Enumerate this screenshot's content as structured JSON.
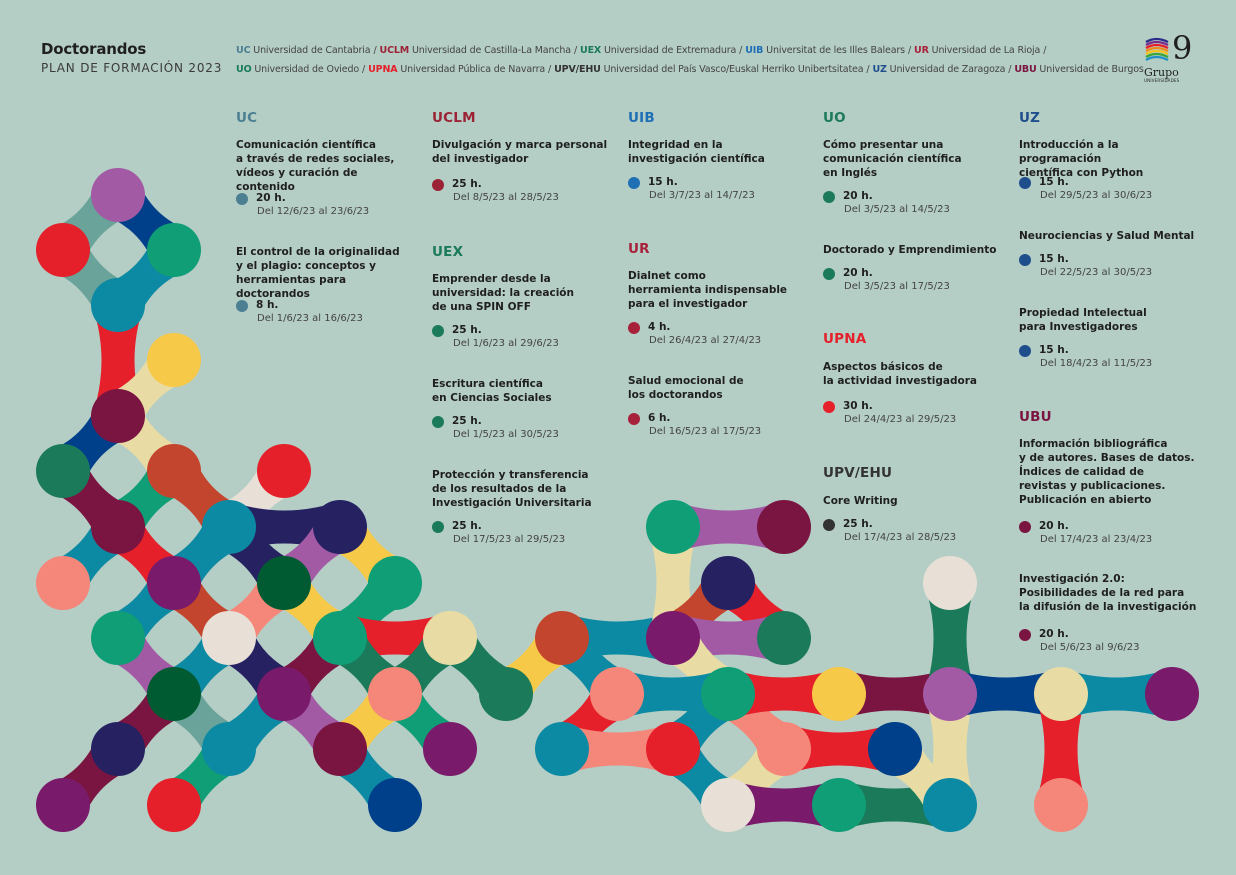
{
  "header": {
    "title": "Doctorandos",
    "subtitle": "PLAN DE FORMACIÓN 2023"
  },
  "universities_line1": [
    {
      "code": "UC",
      "name": "Universidad de Cantabria",
      "color": "#4b7f91"
    },
    {
      "code": "UCLM",
      "name": "Universidad de Castilla-La Mancha",
      "color": "#9b2335"
    },
    {
      "code": "UEX",
      "name": "Universidad de Extremadura",
      "color": "#1a7a5a"
    },
    {
      "code": "UIB",
      "name": "Universitat de les Illes Balears",
      "color": "#1f6fb5"
    },
    {
      "code": "UR",
      "name": "Universidad de La Rioja",
      "color": "#a8213a"
    }
  ],
  "universities_line2": [
    {
      "code": "UO",
      "name": "Universidad de Oviedo",
      "color": "#1a7a5a"
    },
    {
      "code": "UPNA",
      "name": "Universidad Pública de Navarra",
      "color": "#e5202a"
    },
    {
      "code": "UPV/EHU",
      "name": "Universidad del País Vasco/Euskal Herriko Unibertsitatea",
      "color": "#333333"
    },
    {
      "code": "UZ",
      "name": "Universidad de Zaragoza",
      "color": "#1f4e8c"
    },
    {
      "code": "UBU",
      "name": "Universidad de Burgos",
      "color": "#7a1441"
    }
  ],
  "logo": {
    "number": "9",
    "word": "Grupo",
    "small": "UNIVERSIDADES"
  },
  "columns": [
    {
      "blocks": [
        {
          "code": "UC",
          "color": "#4b7f91",
          "courses": [
            {
              "title": "Comunicación científica\na través de redes sociales,\nvídeos y curación de contenido",
              "hours": "20 h.",
              "dates": "Del 12/6/23 al 23/6/23"
            },
            {
              "title": "El control de la originalidad\ny el plagio: conceptos y\nherramientas para doctorandos",
              "hours": "8 h.",
              "dates": "Del 1/6/23 al 16/6/23"
            }
          ]
        }
      ]
    },
    {
      "blocks": [
        {
          "code": "UCLM",
          "color": "#9b2335",
          "courses": [
            {
              "title": "Divulgación y marca personal\ndel investigador",
              "hours": "25 h.",
              "dates": "Del 8/5/23 al 28/5/23"
            }
          ]
        },
        {
          "code": "UEX",
          "color": "#1a7a5a",
          "courses": [
            {
              "title": "Emprender desde la\nuniversidad: la creación\nde una SPIN OFF",
              "hours": "25 h.",
              "dates": "Del 1/6/23 al 29/6/23"
            },
            {
              "title": "Escritura científica\nen Ciencias Sociales",
              "hours": "25 h.",
              "dates": "Del 1/5/23 al 30/5/23"
            },
            {
              "title": "Protección y transferencia\nde los resultados de la\nInvestigación Universitaria",
              "hours": "25 h.",
              "dates": "Del 17/5/23 al 29/5/23"
            }
          ]
        }
      ]
    },
    {
      "blocks": [
        {
          "code": "UIB",
          "color": "#1f6fb5",
          "courses": [
            {
              "title": "Integridad en la\ninvestigación científica",
              "hours": "15 h.",
              "dates": "Del 3/7/23 al 14/7/23"
            }
          ]
        },
        {
          "code": "UR",
          "color": "#a8213a",
          "courses": [
            {
              "title": "Dialnet como\nherramienta indispensable\npara el investigador",
              "hours": "4 h.",
              "dates": "Del 26/4/23 al 27/4/23"
            },
            {
              "title": "Salud emocional de\nlos doctorandos",
              "hours": "6 h.",
              "dates": "Del 16/5/23 al 17/5/23"
            }
          ]
        }
      ]
    },
    {
      "blocks": [
        {
          "code": "UO",
          "color": "#1a7a5a",
          "courses": [
            {
              "title": "Cómo presentar una\ncomunicación científica\nen Inglés",
              "hours": "20 h.",
              "dates": "Del 3/5/23 al 14/5/23"
            },
            {
              "title": "Doctorado y Emprendimiento",
              "hours": "20 h.",
              "dates": "Del 3/5/23 al 17/5/23"
            }
          ]
        },
        {
          "code": "UPNA",
          "color": "#e5202a",
          "courses": [
            {
              "title": "Aspectos básicos de\nla actividad investigadora",
              "hours": "30 h.",
              "dates": "Del 24/4/23 al 29/5/23"
            }
          ]
        },
        {
          "code": "UPV/EHU",
          "color": "#333333",
          "courses": [
            {
              "title": "Core Writing",
              "hours": "25 h.",
              "dates": "Del 17/4/23 al 28/5/23"
            }
          ]
        }
      ]
    },
    {
      "blocks": [
        {
          "code": "UZ",
          "color": "#1f4e8c",
          "courses": [
            {
              "title": "Introducción a la programación\ncientífica con Python",
              "hours": "15 h.",
              "dates": "Del 29/5/23 al 30/6/23"
            },
            {
              "title": "Neurociencias y Salud Mental",
              "hours": "15 h.",
              "dates": "Del 22/5/23 al 30/5/23"
            },
            {
              "title": "Propiedad Intelectual\npara Investigadores",
              "hours": "15 h.",
              "dates": "Del 18/4/23 al 11/5/23"
            }
          ]
        },
        {
          "code": "UBU",
          "color": "#7a1441",
          "courses": [
            {
              "title": "Información bibliográfica\ny de autores. Bases de datos.\nÍndices de calidad de\nrevistas y publicaciones.\nPublicación en abierto",
              "hours": "20 h.",
              "dates": "Del 17/4/23 al 23/4/23"
            },
            {
              "title": "Investigación 2.0:\nPosibilidades de la red para\nla difusión de la investigación",
              "hours": "20 h.",
              "dates": "Del 5/6/23 al 9/6/23"
            }
          ]
        }
      ]
    }
  ]
}
